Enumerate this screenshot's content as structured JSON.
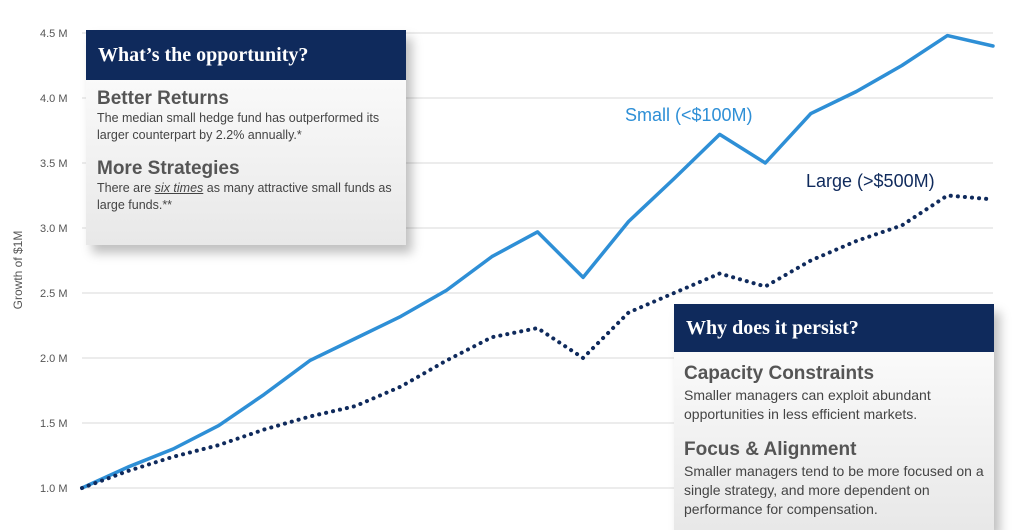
{
  "chart_data": {
    "type": "line",
    "ylabel": "Growth of $1M",
    "ylim": [
      1.0,
      4.5
    ],
    "yticks": [
      {
        "value": 1.0,
        "label": "1.0 M"
      },
      {
        "value": 1.5,
        "label": "1.5 M"
      },
      {
        "value": 2.0,
        "label": "2.0 M"
      },
      {
        "value": 2.5,
        "label": "2.5 M"
      },
      {
        "value": 3.0,
        "label": "3.0 M"
      },
      {
        "value": 3.5,
        "label": "3.5 M"
      },
      {
        "value": 4.0,
        "label": "4.0 M"
      },
      {
        "value": 4.5,
        "label": "4.5 M"
      }
    ],
    "grid": true,
    "x": [
      0,
      5,
      10,
      15,
      20,
      25,
      30,
      35,
      40,
      45,
      50,
      55,
      60,
      65,
      70,
      75,
      80,
      85,
      90,
      95,
      100
    ],
    "series": [
      {
        "name": "Small (<$100M)",
        "color": "#2e8fd6",
        "style": "solid",
        "values": [
          1.0,
          1.16,
          1.3,
          1.48,
          1.72,
          1.98,
          2.15,
          2.32,
          2.52,
          2.78,
          2.97,
          2.62,
          3.05,
          3.38,
          3.72,
          3.5,
          3.88,
          4.05,
          4.25,
          4.48,
          4.4
        ]
      },
      {
        "name": "Large (>$500M)",
        "color": "#0f2a5c",
        "style": "dotted",
        "values": [
          1.0,
          1.13,
          1.24,
          1.33,
          1.45,
          1.55,
          1.63,
          1.78,
          1.98,
          2.16,
          2.23,
          2.0,
          2.35,
          2.5,
          2.65,
          2.55,
          2.75,
          2.9,
          3.02,
          3.25,
          3.22
        ]
      }
    ]
  },
  "callout_left": {
    "title": "What’s the opportunity?",
    "section1_heading": "Better Returns",
    "section1_text": "The median small hedge fund has outperformed its larger counterpart by 2.2% annually.*",
    "section2_heading": "More Strategies",
    "section2_text_before": "There are ",
    "section2_text_emphasis": "six times",
    "section2_text_after": " as many attractive small funds as large funds.**"
  },
  "callout_right": {
    "title": "Why does it persist?",
    "section1_heading": "Capacity Constraints",
    "section1_text": "Smaller managers can exploit abundant opportunities in less efficient markets.",
    "section2_heading": "Focus & Alignment",
    "section2_text": "Smaller managers tend to be more focused on a single strategy, and more dependent on performance for compensation."
  }
}
